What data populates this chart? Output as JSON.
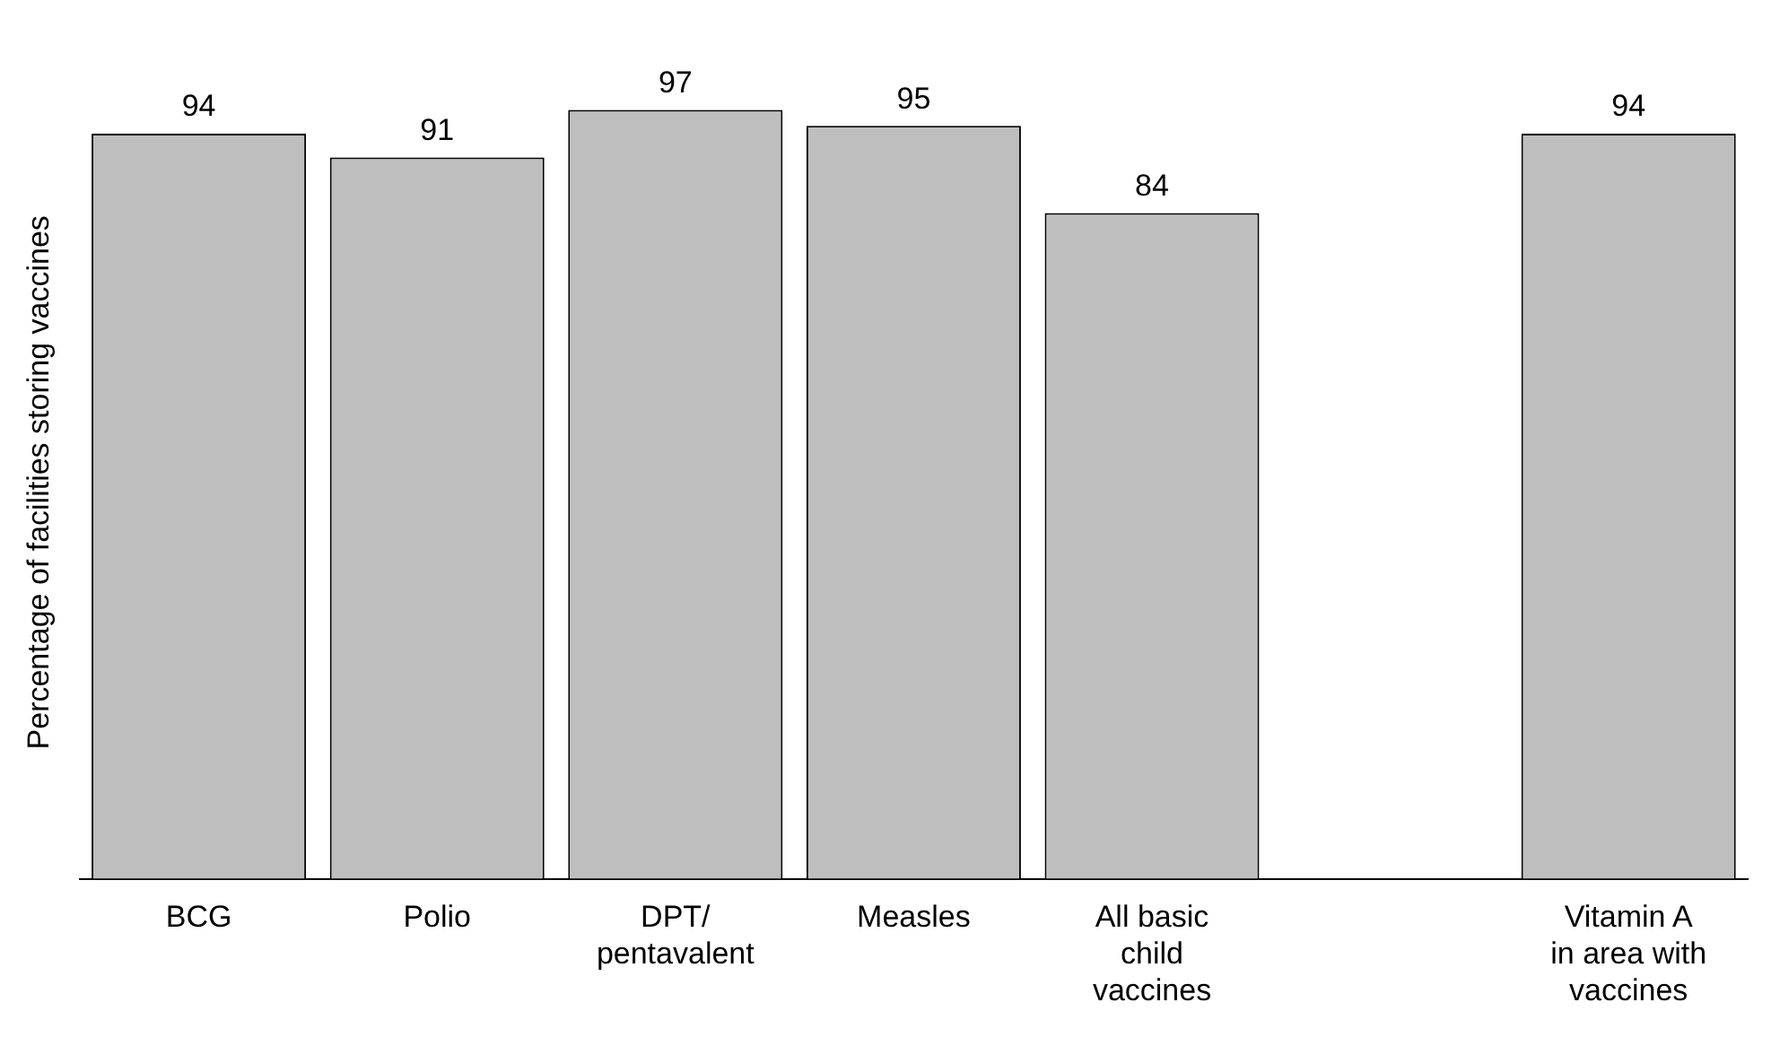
{
  "chart_data": {
    "type": "bar",
    "ylabel": "Percentage of facilities storing vaccines",
    "categories": [
      "BCG",
      "Polio",
      "DPT/\npentavalent",
      "Measles",
      "All basic\nchild\nvaccines",
      null,
      "Vitamin A\nin area with\nvaccines"
    ],
    "values": [
      94,
      91,
      97,
      95,
      84,
      null,
      94
    ],
    "color": "#bebebe",
    "data_labels": true,
    "grid": false,
    "legend": false,
    "tick_labels": "x"
  }
}
